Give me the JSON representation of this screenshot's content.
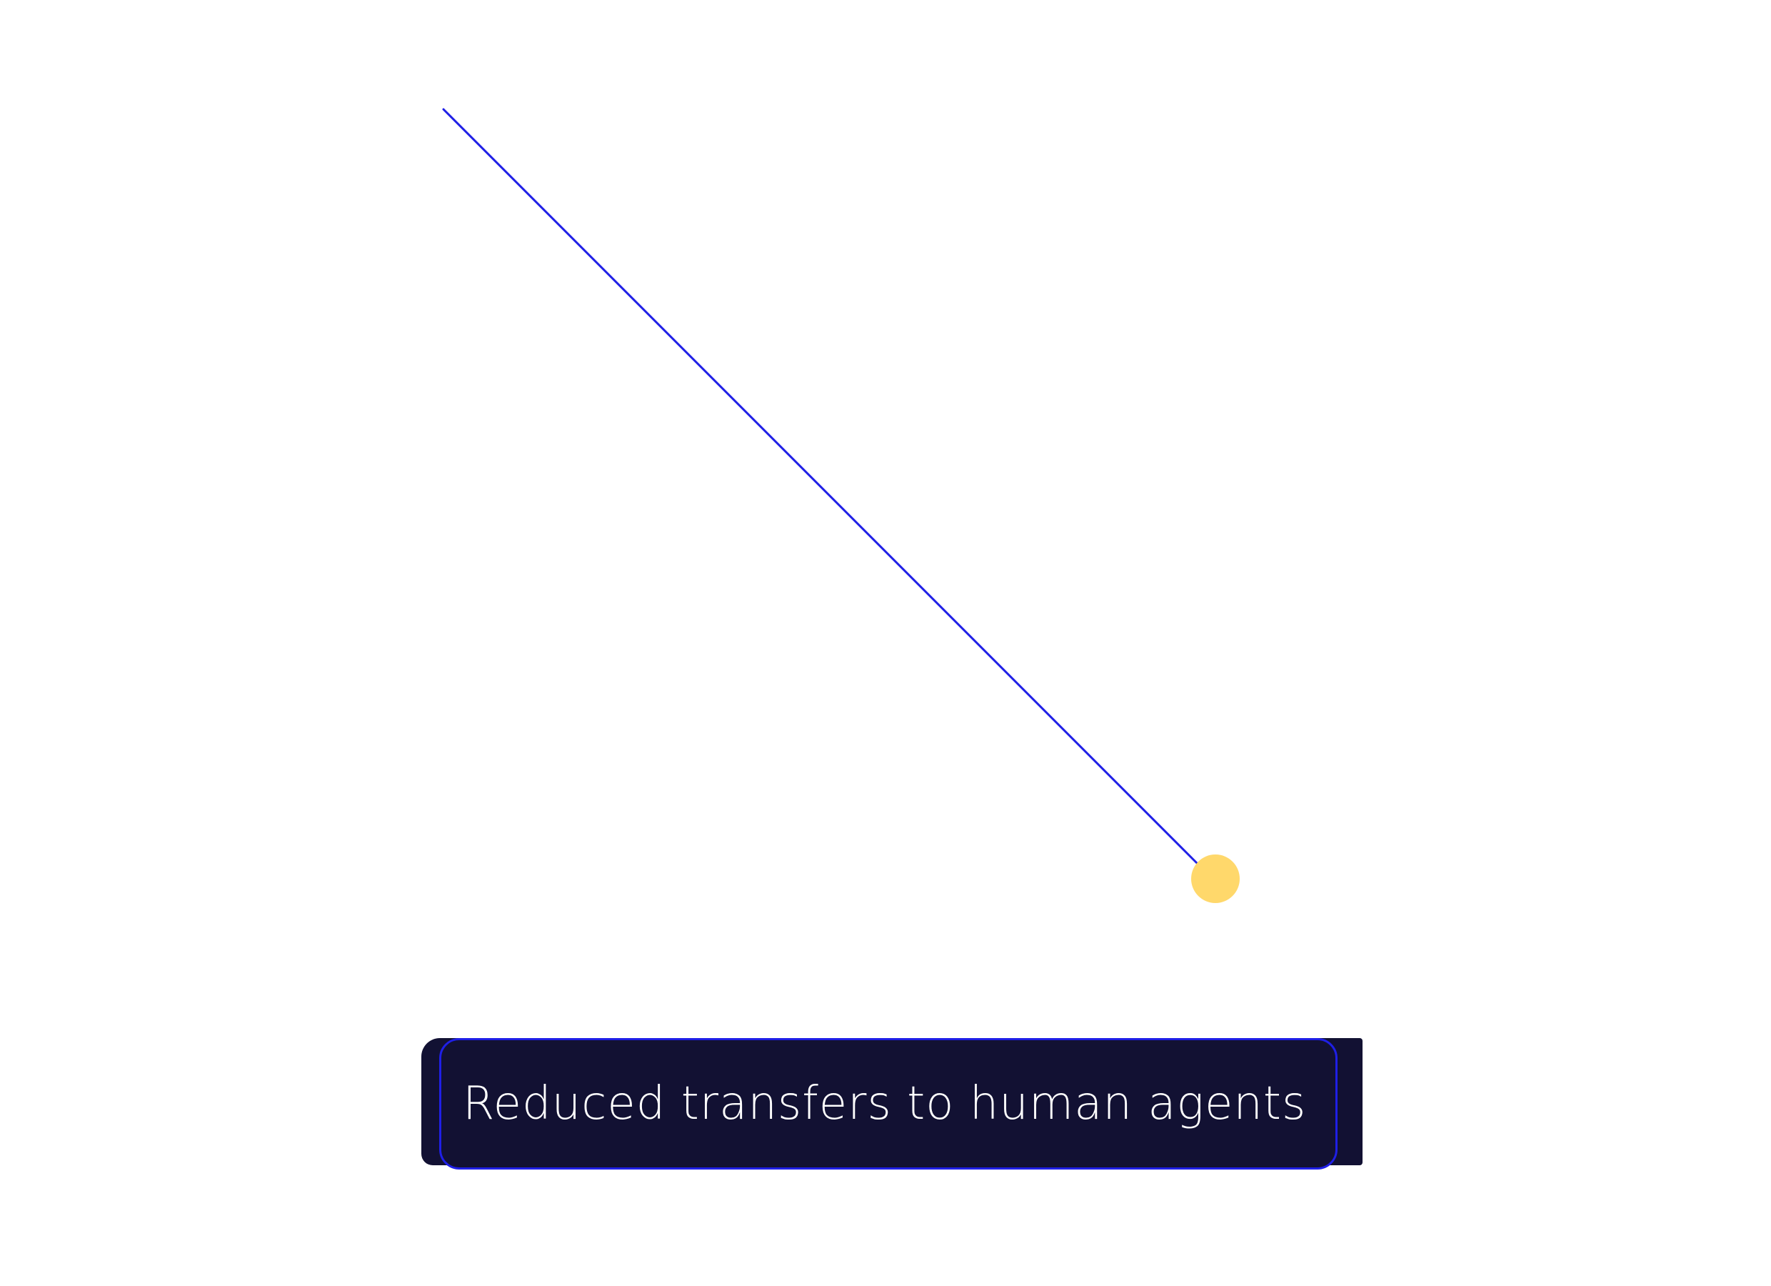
{
  "colors": {
    "accent": "#1f1fe6",
    "node": "#ffd86b",
    "label_background": "#121133",
    "label_text": "#ffffff",
    "background": "#ffffff"
  },
  "label": {
    "text": "Reduced transfers to human agents"
  },
  "icons": {
    "node": "circle-node-icon"
  }
}
